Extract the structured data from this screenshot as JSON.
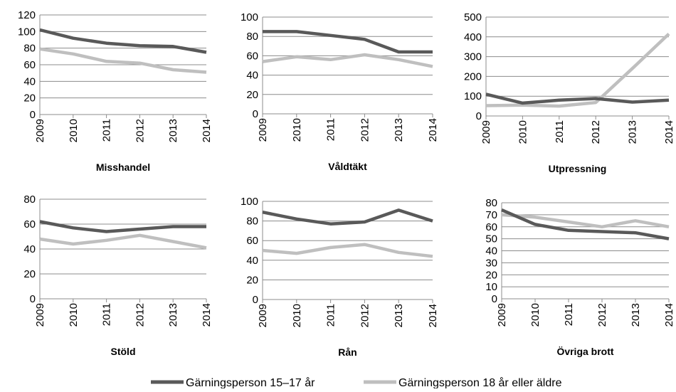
{
  "chart_data": [
    {
      "type": "line",
      "title": "Misshandel",
      "x": [
        "2009",
        "2010",
        "2011",
        "2012",
        "2013",
        "2014"
      ],
      "ylim": [
        0,
        120
      ],
      "yticks": [
        0,
        20,
        40,
        60,
        80,
        100,
        120
      ],
      "grid": true,
      "series": [
        {
          "name": "Gärningsperson 15–17 år",
          "values": [
            102,
            92,
            86,
            83,
            82,
            75
          ]
        },
        {
          "name": "Gärningsperson 18 år eller äldre",
          "values": [
            79,
            73,
            64,
            62,
            54,
            51
          ]
        }
      ]
    },
    {
      "type": "line",
      "title": "Våldtäkt",
      "x": [
        "2009",
        "2010",
        "2011",
        "2012",
        "2013",
        "2014"
      ],
      "ylim": [
        0,
        100
      ],
      "yticks": [
        0,
        20,
        40,
        60,
        80,
        100
      ],
      "grid": true,
      "series": [
        {
          "name": "Gärningsperson 15–17 år",
          "values": [
            85,
            85,
            81,
            77,
            64,
            64
          ]
        },
        {
          "name": "Gärningsperson 18 år eller äldre",
          "values": [
            54,
            59,
            56,
            61,
            56,
            49
          ]
        }
      ]
    },
    {
      "type": "line",
      "title": "Utpressning",
      "x": [
        "2009",
        "2010",
        "2011",
        "2012",
        "2013",
        "2014"
      ],
      "ylim": [
        0,
        500
      ],
      "yticks": [
        0,
        100,
        200,
        300,
        400,
        500
      ],
      "grid": true,
      "series": [
        {
          "name": "Gärningsperson 15–17 år",
          "values": [
            110,
            65,
            80,
            88,
            70,
            80
          ]
        },
        {
          "name": "Gärningsperson 18 år eller äldre",
          "values": [
            52,
            55,
            50,
            68,
            240,
            415
          ]
        }
      ]
    },
    {
      "type": "line",
      "title": "Stöld",
      "x": [
        "2009",
        "2010",
        "2011",
        "2012",
        "2013",
        "2014"
      ],
      "ylim": [
        0,
        80
      ],
      "yticks": [
        0,
        20,
        40,
        60,
        80
      ],
      "grid": true,
      "series": [
        {
          "name": "Gärningsperson 15–17 år",
          "values": [
            62,
            57,
            54,
            56,
            58,
            58
          ]
        },
        {
          "name": "Gärningsperson 18 år eller äldre",
          "values": [
            48,
            44,
            47,
            51,
            46,
            41
          ]
        }
      ]
    },
    {
      "type": "line",
      "title": "Rån",
      "x": [
        "2009",
        "2010",
        "2011",
        "2012",
        "2013",
        "2014"
      ],
      "ylim": [
        0,
        100
      ],
      "yticks": [
        0,
        20,
        40,
        60,
        80,
        100
      ],
      "grid": true,
      "series": [
        {
          "name": "Gärningsperson 15–17 år",
          "values": [
            89,
            82,
            77,
            79,
            91,
            80
          ]
        },
        {
          "name": "Gärningsperson 18 år eller äldre",
          "values": [
            50,
            47,
            53,
            56,
            48,
            44
          ]
        }
      ]
    },
    {
      "type": "line",
      "title": "Övriga brott",
      "x": [
        "2009",
        "2010",
        "2011",
        "2012",
        "2013",
        "2014"
      ],
      "ylim": [
        0,
        80
      ],
      "yticks": [
        0,
        10,
        20,
        30,
        40,
        50,
        60,
        70,
        80
      ],
      "grid": true,
      "series": [
        {
          "name": "Gärningsperson 15–17 år",
          "values": [
            74,
            62,
            57,
            56,
            55,
            50
          ]
        },
        {
          "name": "Gärningsperson 18 år eller äldre",
          "values": [
            70,
            68,
            64,
            60,
            65,
            60
          ]
        }
      ]
    }
  ],
  "legend": {
    "placement": "bottom",
    "items": [
      {
        "label": "Gärningsperson 15–17 år",
        "color": "#595959"
      },
      {
        "label": "Gärningsperson 18 år eller äldre",
        "color": "#bfbfbf"
      }
    ]
  },
  "colors": {
    "series_dark": "#595959",
    "series_light": "#bfbfbf",
    "grid": "#8c8c8c",
    "axis": "#8c8c8c"
  }
}
